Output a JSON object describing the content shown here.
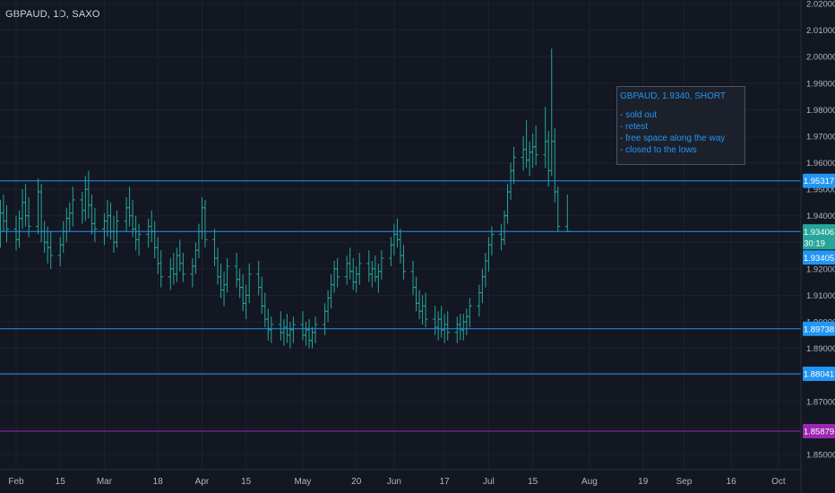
{
  "header": {
    "symbol_title": "GBPAUD, 1D, SAXO"
  },
  "annotation": {
    "title": "GBPAUD, 1.9340, SHORT",
    "lines": [
      "- sold out",
      "- retest",
      "- free space along the way",
      "- closed to the lows"
    ]
  },
  "colors": {
    "background": "#131722",
    "bar": "#26a69a",
    "level": "#2196f3",
    "level_magenta": "#9c27b0",
    "grid": "#1e222d",
    "axis_text": "#b2b5be",
    "annotation_text": "#2196f3"
  },
  "chart_data": {
    "type": "ohlc",
    "title": "GBPAUD, 1D, SAXO",
    "ylim": [
      1.845,
      2.02
    ],
    "y_ticks": [
      "2.02000",
      "2.01000",
      "2.00000",
      "1.99000",
      "1.98000",
      "1.97000",
      "1.96000",
      "1.95000",
      "1.94000",
      "1.93000",
      "1.92000",
      "1.91000",
      "1.90000",
      "1.89000",
      "1.88000",
      "1.87000",
      "1.86000",
      "1.85000"
    ],
    "x_ticks": [
      {
        "label": "Feb",
        "date": "2021-02-01"
      },
      {
        "label": "15",
        "date": "2021-02-15"
      },
      {
        "label": "Mar",
        "date": "2021-03-01"
      },
      {
        "label": "18",
        "date": "2021-03-18"
      },
      {
        "label": "Apr",
        "date": "2021-04-01"
      },
      {
        "label": "15",
        "date": "2021-04-15"
      },
      {
        "label": "May",
        "date": "2021-05-03"
      },
      {
        "label": "20",
        "date": "2021-05-20"
      },
      {
        "label": "Jun",
        "date": "2021-06-01"
      },
      {
        "label": "17",
        "date": "2021-06-17"
      },
      {
        "label": "Jul",
        "date": "2021-07-01"
      },
      {
        "label": "15",
        "date": "2021-07-15"
      },
      {
        "label": "Aug",
        "date": "2021-08-02"
      },
      {
        "label": "19",
        "date": "2021-08-19"
      },
      {
        "label": "Sep",
        "date": "2021-09-01"
      },
      {
        "label": "16",
        "date": "2021-09-16"
      },
      {
        "label": "Oct",
        "date": "2021-10-01"
      }
    ],
    "levels": [
      {
        "label": "1.95317",
        "value": 1.95317,
        "color": "#2196f3"
      },
      {
        "label": "1.93406",
        "value": 1.93406,
        "color": "#2196f3"
      },
      {
        "label": "1.89738",
        "value": 1.89738,
        "color": "#2196f3"
      },
      {
        "label": "1.88041",
        "value": 1.88041,
        "color": "#2196f3"
      },
      {
        "label": "1.85879",
        "value": 1.85879,
        "color": "#9c27b0"
      }
    ],
    "price_tag": {
      "price": "1.93406",
      "countdown": "30:19",
      "value": 1.93406,
      "color": "#26a69a"
    },
    "last_tag": {
      "label": "1.93405",
      "value": 1.93405,
      "color": "#2196f3"
    },
    "bars_start": "2021-01-25",
    "bars": [
      {
        "o": 1.93,
        "h": 1.936,
        "l": 1.918,
        "c": 1.926
      },
      {
        "o": 1.926,
        "h": 1.935,
        "l": 1.921,
        "c": 1.932
      },
      {
        "o": 1.932,
        "h": 1.946,
        "l": 1.928,
        "c": 1.941
      },
      {
        "o": 1.941,
        "h": 1.948,
        "l": 1.934,
        "c": 1.938
      },
      {
        "o": 1.938,
        "h": 1.944,
        "l": 1.93,
        "c": 1.935
      },
      {
        "o": 1.935,
        "h": 1.94,
        "l": 1.927,
        "c": 1.931
      },
      {
        "o": 1.931,
        "h": 1.942,
        "l": 1.928,
        "c": 1.939
      },
      {
        "o": 1.939,
        "h": 1.95,
        "l": 1.935,
        "c": 1.945
      },
      {
        "o": 1.945,
        "h": 1.952,
        "l": 1.936,
        "c": 1.94
      },
      {
        "o": 1.94,
        "h": 1.947,
        "l": 1.932,
        "c": 1.936
      },
      {
        "o": 1.936,
        "h": 1.954,
        "l": 1.933,
        "c": 1.949
      },
      {
        "o": 1.949,
        "h": 1.952,
        "l": 1.93,
        "c": 1.934
      },
      {
        "o": 1.934,
        "h": 1.938,
        "l": 1.926,
        "c": 1.93
      },
      {
        "o": 1.93,
        "h": 1.936,
        "l": 1.922,
        "c": 1.928
      },
      {
        "o": 1.928,
        "h": 1.934,
        "l": 1.92,
        "c": 1.925
      },
      {
        "o": 1.925,
        "h": 1.932,
        "l": 1.921,
        "c": 1.929
      },
      {
        "o": 1.929,
        "h": 1.938,
        "l": 1.926,
        "c": 1.934
      },
      {
        "o": 1.934,
        "h": 1.943,
        "l": 1.93,
        "c": 1.939
      },
      {
        "o": 1.939,
        "h": 1.945,
        "l": 1.934,
        "c": 1.941
      },
      {
        "o": 1.941,
        "h": 1.951,
        "l": 1.936,
        "c": 1.946
      },
      {
        "o": 1.946,
        "h": 1.949,
        "l": 1.937,
        "c": 1.942
      },
      {
        "o": 1.942,
        "h": 1.955,
        "l": 1.938,
        "c": 1.95
      },
      {
        "o": 1.95,
        "h": 1.957,
        "l": 1.939,
        "c": 1.944
      },
      {
        "o": 1.944,
        "h": 1.948,
        "l": 1.933,
        "c": 1.937
      },
      {
        "o": 1.937,
        "h": 1.943,
        "l": 1.93,
        "c": 1.935
      },
      {
        "o": 1.935,
        "h": 1.941,
        "l": 1.929,
        "c": 1.938
      },
      {
        "o": 1.938,
        "h": 1.946,
        "l": 1.932,
        "c": 1.94
      },
      {
        "o": 1.94,
        "h": 1.945,
        "l": 1.931,
        "c": 1.934
      },
      {
        "o": 1.934,
        "h": 1.94,
        "l": 1.926,
        "c": 1.93
      },
      {
        "o": 1.93,
        "h": 1.942,
        "l": 1.928,
        "c": 1.938
      },
      {
        "o": 1.938,
        "h": 1.947,
        "l": 1.934,
        "c": 1.943
      },
      {
        "o": 1.943,
        "h": 1.951,
        "l": 1.936,
        "c": 1.94
      },
      {
        "o": 1.94,
        "h": 1.946,
        "l": 1.932,
        "c": 1.935
      },
      {
        "o": 1.935,
        "h": 1.94,
        "l": 1.927,
        "c": 1.931
      },
      {
        "o": 1.931,
        "h": 1.937,
        "l": 1.925,
        "c": 1.933
      },
      {
        "o": 1.933,
        "h": 1.939,
        "l": 1.928,
        "c": 1.936
      },
      {
        "o": 1.936,
        "h": 1.942,
        "l": 1.93,
        "c": 1.934
      },
      {
        "o": 1.934,
        "h": 1.938,
        "l": 1.924,
        "c": 1.928
      },
      {
        "o": 1.928,
        "h": 1.932,
        "l": 1.918,
        "c": 1.922
      },
      {
        "o": 1.922,
        "h": 1.927,
        "l": 1.913,
        "c": 1.917
      },
      {
        "o": 1.917,
        "h": 1.924,
        "l": 1.912,
        "c": 1.92
      },
      {
        "o": 1.92,
        "h": 1.926,
        "l": 1.914,
        "c": 1.918
      },
      {
        "o": 1.918,
        "h": 1.928,
        "l": 1.915,
        "c": 1.925
      },
      {
        "o": 1.925,
        "h": 1.931,
        "l": 1.919,
        "c": 1.922
      },
      {
        "o": 1.922,
        "h": 1.926,
        "l": 1.915,
        "c": 1.918
      },
      {
        "o": 1.918,
        "h": 1.924,
        "l": 1.913,
        "c": 1.921
      },
      {
        "o": 1.921,
        "h": 1.93,
        "l": 1.918,
        "c": 1.927
      },
      {
        "o": 1.927,
        "h": 1.937,
        "l": 1.924,
        "c": 1.934
      },
      {
        "o": 1.934,
        "h": 1.947,
        "l": 1.931,
        "c": 1.943
      },
      {
        "o": 1.943,
        "h": 1.946,
        "l": 1.928,
        "c": 1.931
      },
      {
        "o": 1.931,
        "h": 1.935,
        "l": 1.921,
        "c": 1.924
      },
      {
        "o": 1.924,
        "h": 1.928,
        "l": 1.914,
        "c": 1.917
      },
      {
        "o": 1.917,
        "h": 1.922,
        "l": 1.909,
        "c": 1.912
      },
      {
        "o": 1.912,
        "h": 1.919,
        "l": 1.906,
        "c": 1.914
      },
      {
        "o": 1.914,
        "h": 1.924,
        "l": 1.911,
        "c": 1.921
      },
      {
        "o": 1.921,
        "h": 1.926,
        "l": 1.913,
        "c": 1.916
      },
      {
        "o": 1.916,
        "h": 1.92,
        "l": 1.909,
        "c": 1.913
      },
      {
        "o": 1.913,
        "h": 1.918,
        "l": 1.904,
        "c": 1.907
      },
      {
        "o": 1.907,
        "h": 1.914,
        "l": 1.901,
        "c": 1.91
      },
      {
        "o": 1.91,
        "h": 1.922,
        "l": 1.907,
        "c": 1.918
      },
      {
        "o": 1.918,
        "h": 1.923,
        "l": 1.91,
        "c": 1.913
      },
      {
        "o": 1.913,
        "h": 1.917,
        "l": 1.903,
        "c": 1.906
      },
      {
        "o": 1.906,
        "h": 1.911,
        "l": 1.898,
        "c": 1.901
      },
      {
        "o": 1.901,
        "h": 1.905,
        "l": 1.893,
        "c": 1.897
      },
      {
        "o": 1.897,
        "h": 1.902,
        "l": 1.892,
        "c": 1.899
      },
      {
        "o": 1.899,
        "h": 1.904,
        "l": 1.893,
        "c": 1.896
      },
      {
        "o": 1.896,
        "h": 1.901,
        "l": 1.891,
        "c": 1.898
      },
      {
        "o": 1.898,
        "h": 1.903,
        "l": 1.892,
        "c": 1.895
      },
      {
        "o": 1.895,
        "h": 1.9,
        "l": 1.89,
        "c": 1.897
      },
      {
        "o": 1.897,
        "h": 1.902,
        "l": 1.892,
        "c": 1.899
      },
      {
        "o": 1.899,
        "h": 1.904,
        "l": 1.893,
        "c": 1.895
      },
      {
        "o": 1.895,
        "h": 1.9,
        "l": 1.891,
        "c": 1.897
      },
      {
        "o": 1.897,
        "h": 1.901,
        "l": 1.89,
        "c": 1.893
      },
      {
        "o": 1.893,
        "h": 1.898,
        "l": 1.89,
        "c": 1.896
      },
      {
        "o": 1.896,
        "h": 1.902,
        "l": 1.892,
        "c": 1.899
      },
      {
        "o": 1.899,
        "h": 1.907,
        "l": 1.895,
        "c": 1.904
      },
      {
        "o": 1.904,
        "h": 1.912,
        "l": 1.9,
        "c": 1.909
      },
      {
        "o": 1.909,
        "h": 1.918,
        "l": 1.905,
        "c": 1.914
      },
      {
        "o": 1.914,
        "h": 1.923,
        "l": 1.911,
        "c": 1.92
      },
      {
        "o": 1.92,
        "h": 1.924,
        "l": 1.913,
        "c": 1.917
      },
      {
        "o": 1.917,
        "h": 1.925,
        "l": 1.914,
        "c": 1.922
      },
      {
        "o": 1.922,
        "h": 1.928,
        "l": 1.916,
        "c": 1.919
      },
      {
        "o": 1.919,
        "h": 1.924,
        "l": 1.912,
        "c": 1.915
      },
      {
        "o": 1.915,
        "h": 1.921,
        "l": 1.911,
        "c": 1.918
      },
      {
        "o": 1.918,
        "h": 1.926,
        "l": 1.914,
        "c": 1.922
      },
      {
        "o": 1.922,
        "h": 1.927,
        "l": 1.915,
        "c": 1.918
      },
      {
        "o": 1.918,
        "h": 1.923,
        "l": 1.913,
        "c": 1.92
      },
      {
        "o": 1.92,
        "h": 1.925,
        "l": 1.915,
        "c": 1.917
      },
      {
        "o": 1.917,
        "h": 1.922,
        "l": 1.911,
        "c": 1.919
      },
      {
        "o": 1.919,
        "h": 1.927,
        "l": 1.916,
        "c": 1.924
      },
      {
        "o": 1.924,
        "h": 1.932,
        "l": 1.921,
        "c": 1.929
      },
      {
        "o": 1.929,
        "h": 1.937,
        "l": 1.925,
        "c": 1.933
      },
      {
        "o": 1.933,
        "h": 1.939,
        "l": 1.928,
        "c": 1.931
      },
      {
        "o": 1.931,
        "h": 1.935,
        "l": 1.922,
        "c": 1.925
      },
      {
        "o": 1.925,
        "h": 1.929,
        "l": 1.916,
        "c": 1.919
      },
      {
        "o": 1.919,
        "h": 1.923,
        "l": 1.91,
        "c": 1.913
      },
      {
        "o": 1.913,
        "h": 1.917,
        "l": 1.904,
        "c": 1.907
      },
      {
        "o": 1.907,
        "h": 1.912,
        "l": 1.901,
        "c": 1.904
      },
      {
        "o": 1.904,
        "h": 1.91,
        "l": 1.899,
        "c": 1.906
      },
      {
        "o": 1.906,
        "h": 1.911,
        "l": 1.898,
        "c": 1.901
      },
      {
        "o": 1.901,
        "h": 1.906,
        "l": 1.895,
        "c": 1.898
      },
      {
        "o": 1.898,
        "h": 1.904,
        "l": 1.893,
        "c": 1.901
      },
      {
        "o": 1.901,
        "h": 1.906,
        "l": 1.894,
        "c": 1.897
      },
      {
        "o": 1.897,
        "h": 1.903,
        "l": 1.892,
        "c": 1.899
      },
      {
        "o": 1.899,
        "h": 1.904,
        "l": 1.893,
        "c": 1.896
      },
      {
        "o": 1.896,
        "h": 1.902,
        "l": 1.892,
        "c": 1.899
      },
      {
        "o": 1.899,
        "h": 1.903,
        "l": 1.893,
        "c": 1.897
      },
      {
        "o": 1.897,
        "h": 1.903,
        "l": 1.893,
        "c": 1.9
      },
      {
        "o": 1.9,
        "h": 1.905,
        "l": 1.895,
        "c": 1.902
      },
      {
        "o": 1.902,
        "h": 1.909,
        "l": 1.898,
        "c": 1.906
      },
      {
        "o": 1.906,
        "h": 1.914,
        "l": 1.902,
        "c": 1.911
      },
      {
        "o": 1.911,
        "h": 1.92,
        "l": 1.907,
        "c": 1.917
      },
      {
        "o": 1.917,
        "h": 1.926,
        "l": 1.913,
        "c": 1.923
      },
      {
        "o": 1.923,
        "h": 1.932,
        "l": 1.919,
        "c": 1.929
      },
      {
        "o": 1.929,
        "h": 1.936,
        "l": 1.925,
        "c": 1.933
      },
      {
        "o": 1.933,
        "h": 1.937,
        "l": 1.927,
        "c": 1.931
      },
      {
        "o": 1.931,
        "h": 1.942,
        "l": 1.929,
        "c": 1.94
      },
      {
        "o": 1.94,
        "h": 1.952,
        "l": 1.937,
        "c": 1.949
      },
      {
        "o": 1.949,
        "h": 1.96,
        "l": 1.946,
        "c": 1.957
      },
      {
        "o": 1.957,
        "h": 1.966,
        "l": 1.952,
        "c": 1.962
      },
      {
        "o": 1.962,
        "h": 1.97,
        "l": 1.957,
        "c": 1.965
      },
      {
        "o": 1.965,
        "h": 1.976,
        "l": 1.958,
        "c": 1.961
      },
      {
        "o": 1.961,
        "h": 1.968,
        "l": 1.955,
        "c": 1.964
      },
      {
        "o": 1.964,
        "h": 1.971,
        "l": 1.958,
        "c": 1.966
      },
      {
        "o": 1.966,
        "h": 1.974,
        "l": 1.959,
        "c": 1.963
      },
      {
        "o": 1.963,
        "h": 1.981,
        "l": 1.958,
        "c": 1.968
      },
      {
        "o": 1.968,
        "h": 1.972,
        "l": 1.951,
        "c": 1.957
      },
      {
        "o": 1.957,
        "h": 2.003,
        "l": 1.955,
        "c": 1.968
      },
      {
        "o": 1.968,
        "h": 1.973,
        "l": 1.945,
        "c": 1.949
      },
      {
        "o": 1.949,
        "h": 1.951,
        "l": 1.934,
        "c": 1.936
      },
      {
        "o": 1.936,
        "h": 1.948,
        "l": 1.934,
        "c": 1.934
      }
    ]
  }
}
